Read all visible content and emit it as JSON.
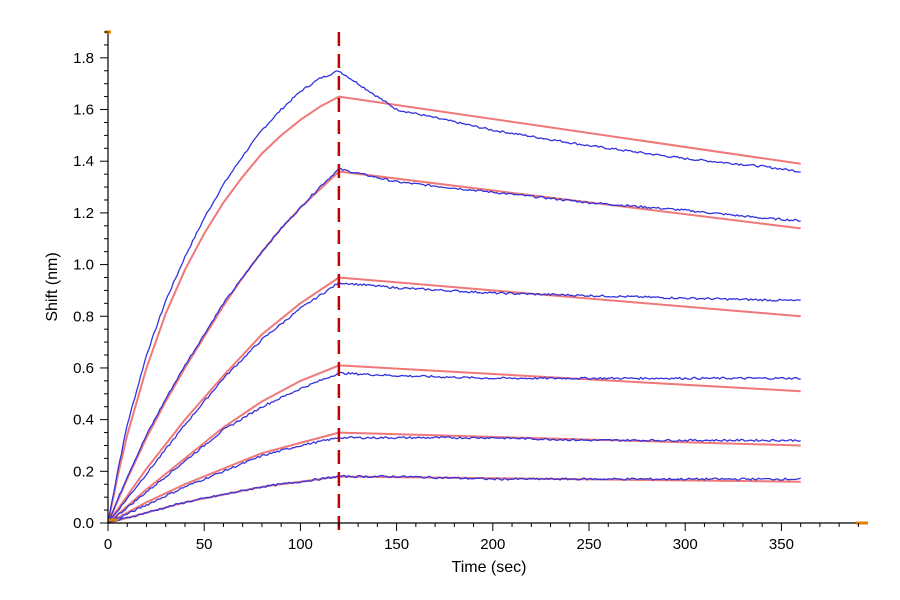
{
  "chart_data": {
    "type": "line",
    "title": "",
    "xlabel": "Time (sec)",
    "ylabel": "Shift (nm)",
    "xlim": [
      0,
      395
    ],
    "ylim": [
      0,
      1.9
    ],
    "x_ticks": [
      0,
      50,
      100,
      150,
      200,
      250,
      300,
      350
    ],
    "x_tick_labels": [
      "0",
      "50",
      "100",
      "150",
      "200",
      "250",
      "300",
      "350"
    ],
    "y_ticks": [
      0,
      0.2,
      0.4,
      0.6,
      0.8,
      1.0,
      1.2,
      1.4,
      1.6,
      1.8
    ],
    "y_tick_labels": [
      "0.0",
      "0.2",
      "0.4",
      "0.6",
      "0.8",
      "1.0",
      "1.2",
      "1.4",
      "1.6",
      "1.8"
    ],
    "grid": false,
    "legend": "none",
    "vline": {
      "x": 120,
      "color": "#c00000",
      "style": "dashed"
    },
    "colors": {
      "measured": "#3333dd",
      "fit": "#f07878",
      "axis": "#000000",
      "axis_end": "#e08000"
    },
    "series": [
      {
        "kind": "measured",
        "x": [
          0,
          5,
          10,
          20,
          30,
          40,
          50,
          60,
          70,
          80,
          90,
          100,
          110,
          120,
          130,
          150,
          200,
          250,
          300,
          340,
          360
        ],
        "values": [
          0,
          0.2,
          0.38,
          0.65,
          0.86,
          1.03,
          1.18,
          1.31,
          1.42,
          1.52,
          1.6,
          1.67,
          1.72,
          1.75,
          1.7,
          1.6,
          1.52,
          1.46,
          1.41,
          1.38,
          1.36
        ]
      },
      {
        "kind": "fit",
        "x": [
          0,
          5,
          10,
          20,
          30,
          40,
          50,
          60,
          70,
          80,
          90,
          100,
          110,
          120,
          360
        ],
        "values": [
          0,
          0.18,
          0.34,
          0.6,
          0.81,
          0.98,
          1.12,
          1.24,
          1.34,
          1.43,
          1.5,
          1.56,
          1.61,
          1.65,
          1.39
        ]
      },
      {
        "kind": "measured",
        "x": [
          0,
          10,
          20,
          30,
          40,
          50,
          60,
          70,
          80,
          90,
          100,
          110,
          120,
          150,
          200,
          250,
          300,
          340,
          360
        ],
        "values": [
          0,
          0.18,
          0.34,
          0.48,
          0.61,
          0.73,
          0.85,
          0.95,
          1.05,
          1.14,
          1.22,
          1.3,
          1.37,
          1.32,
          1.28,
          1.24,
          1.21,
          1.18,
          1.17
        ]
      },
      {
        "kind": "fit",
        "x": [
          0,
          10,
          20,
          30,
          40,
          50,
          60,
          70,
          80,
          90,
          100,
          110,
          120,
          360
        ],
        "values": [
          0,
          0.17,
          0.33,
          0.47,
          0.6,
          0.72,
          0.84,
          0.95,
          1.05,
          1.14,
          1.22,
          1.29,
          1.36,
          1.14
        ]
      },
      {
        "kind": "measured",
        "x": [
          0,
          20,
          40,
          60,
          80,
          100,
          120,
          150,
          200,
          250,
          300,
          360
        ],
        "values": [
          0,
          0.19,
          0.38,
          0.56,
          0.71,
          0.83,
          0.93,
          0.91,
          0.89,
          0.88,
          0.87,
          0.86
        ]
      },
      {
        "kind": "fit",
        "x": [
          0,
          20,
          40,
          60,
          80,
          100,
          120,
          360
        ],
        "values": [
          0,
          0.21,
          0.4,
          0.57,
          0.73,
          0.85,
          0.95,
          0.8
        ]
      },
      {
        "kind": "measured",
        "x": [
          0,
          20,
          40,
          60,
          80,
          100,
          120,
          150,
          200,
          250,
          300,
          360
        ],
        "values": [
          0,
          0.12,
          0.24,
          0.36,
          0.45,
          0.52,
          0.58,
          0.57,
          0.56,
          0.56,
          0.56,
          0.56
        ]
      },
      {
        "kind": "fit",
        "x": [
          0,
          20,
          40,
          60,
          80,
          100,
          120,
          360
        ],
        "values": [
          0,
          0.13,
          0.25,
          0.37,
          0.47,
          0.55,
          0.61,
          0.51
        ]
      },
      {
        "kind": "measured",
        "x": [
          0,
          20,
          40,
          60,
          80,
          100,
          120,
          150,
          200,
          250,
          300,
          360
        ],
        "values": [
          0,
          0.07,
          0.14,
          0.2,
          0.26,
          0.3,
          0.33,
          0.33,
          0.33,
          0.32,
          0.32,
          0.32
        ]
      },
      {
        "kind": "fit",
        "x": [
          0,
          20,
          40,
          60,
          80,
          100,
          120,
          360
        ],
        "values": [
          0,
          0.08,
          0.15,
          0.21,
          0.27,
          0.31,
          0.35,
          0.3
        ]
      },
      {
        "kind": "measured",
        "x": [
          0,
          20,
          40,
          60,
          80,
          100,
          120,
          150,
          200,
          250,
          300,
          360
        ],
        "values": [
          0,
          0.04,
          0.08,
          0.11,
          0.14,
          0.16,
          0.18,
          0.18,
          0.17,
          0.17,
          0.17,
          0.17
        ]
      },
      {
        "kind": "fit",
        "x": [
          0,
          20,
          40,
          60,
          80,
          100,
          120,
          360
        ],
        "values": [
          0,
          0.04,
          0.08,
          0.11,
          0.14,
          0.16,
          0.18,
          0.16
        ]
      }
    ]
  }
}
